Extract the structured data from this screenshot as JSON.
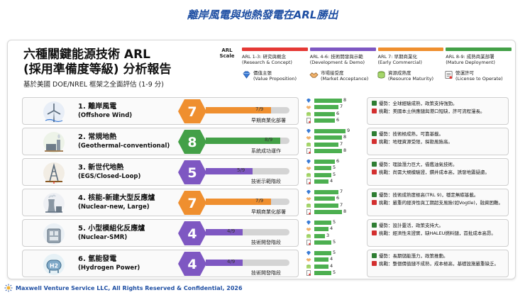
{
  "slide_title": "離岸風電與地熱發電在ARL勝出",
  "report": {
    "title_line1": "六種關鍵能源技術 ARL",
    "title_line2": "(採用準備度等級) 分析報告",
    "subtitle": "基於美國 DOE/NREL 框架之全面評估 (1-9 分)"
  },
  "scale": {
    "label": "ARL Scale",
    "categories": [
      {
        "label": "ARL 1-3: 研究與概念",
        "label_en": "(Research & Concept)",
        "color": "#e53935"
      },
      {
        "label": "ARL 4-6: 技術開發與示範",
        "label_en": "(Development & Demo)",
        "color": "#7e57c2"
      },
      {
        "label": "ARL 7: 早期商業化",
        "label_en": "(Early Commercial)",
        "color": "#ef8f2f"
      },
      {
        "label": "ARL 8-9: 成熟商業部署",
        "label_en": "(Mature Deployment)",
        "color": "#43a047"
      }
    ]
  },
  "legend": [
    {
      "icon": "diamond-icon",
      "label": "價值主張",
      "label_en": "(Value Proposition)"
    },
    {
      "icon": "handshake-icon",
      "label": "市場接受度",
      "label_en": "(Market Acceptance)"
    },
    {
      "icon": "resource-icon",
      "label": "資源成熟度",
      "label_en": "(Resource Maturity)"
    },
    {
      "icon": "license-icon",
      "label": "營運許可",
      "label_en": "(License to Operate)"
    }
  ],
  "chart_data": {
    "type": "bar",
    "title": "六種關鍵能源技術 ARL (採用準備度等級) 分析報告",
    "scale_max": 9,
    "technologies": [
      {
        "name": "1. 離岸風電",
        "name_en": "(Offshore Wind)",
        "icon": "wind-turbine-icon",
        "arl": 7,
        "arl_text": "7/9",
        "stage": "早期商業化部署",
        "color": "#ef8f2f",
        "metrics": [
          8,
          7,
          6,
          6
        ],
        "pro": "優勢：全球經驗成熟，政策支持強勁。",
        "con": "挑戰：美國本土供應鏈與港口短缺，許可流程漫長。"
      },
      {
        "name": "2. 常規地熱",
        "name_en": "(Geothermal-conventional)",
        "icon": "geothermal-plant-icon",
        "arl": 8,
        "arl_text": "8/9",
        "stage": "系統成功運作",
        "color": "#43a047",
        "metrics": [
          9,
          8,
          7,
          8
        ],
        "pro": "優勢：技術極成熟，可靠基載。",
        "con": "挑戰：地理資源受限，探勘風險高。"
      },
      {
        "name": "3. 新世代地熱",
        "name_en": "(EGS/Closed-Loop)",
        "icon": "drilling-rig-icon",
        "arl": 5,
        "arl_text": "5/9",
        "stage": "技術示範階段",
        "color": "#7e57c2",
        "metrics": [
          6,
          5,
          5,
          4
        ],
        "pro": "優勢：理論潛力巨大，借鑑油氣技術。",
        "con": "挑戰：尚需大規模驗證，鑽井成本高，誘發地震疑慮。"
      },
      {
        "name": "4. 核能-新建大型反應爐",
        "name_en": "(Nuclear-new, Large)",
        "icon": "cooling-tower-icon",
        "arl": 7,
        "arl_text": "7/9",
        "stage": "早期商業化部署",
        "color": "#ef8f2f",
        "metrics": [
          7,
          6,
          7,
          8
        ],
        "pro": "優勢：技術成熟度極高(TRL 9)，穩定無碳基載。",
        "con": "挑戰：嚴重的經濟性與工期超支風險(如Vogtle)，融資困難。"
      },
      {
        "name": "5. 小型模組化反應爐",
        "name_en": "(Nuclear-SMR)",
        "icon": "smr-module-icon",
        "arl": 4,
        "arl_text": "4/9",
        "stage": "技術開發階段",
        "color": "#7e57c2",
        "metrics": [
          5,
          4,
          3,
          5
        ],
        "pro": "優勢：設計靈活，政策支持大。",
        "con": "挑戰：經濟性未證實，缺HALEU燃料鏈，首批成本高昂。"
      },
      {
        "name": "6. 氫能發電",
        "name_en": "(Hydrogen Power)",
        "icon": "hydrogen-tank-icon",
        "arl": 4,
        "arl_text": "4/9",
        "stage": "技術開發階段",
        "color": "#7e57c2",
        "metrics": [
          5,
          4,
          4,
          5
        ],
        "pro": "優勢：長期儲能潛力，政策推動。",
        "con": "挑戰：整個價值鏈不成熟，成本極高，基礎設施嚴重缺乏。"
      }
    ]
  },
  "status_colors": {
    "pro": "#2e7d32",
    "con": "#d32f2f",
    "metric_bar": "#4caf50"
  },
  "footer": "Maxwell Venture Service LLC, All Rights Reserved & Confidential, 2026"
}
